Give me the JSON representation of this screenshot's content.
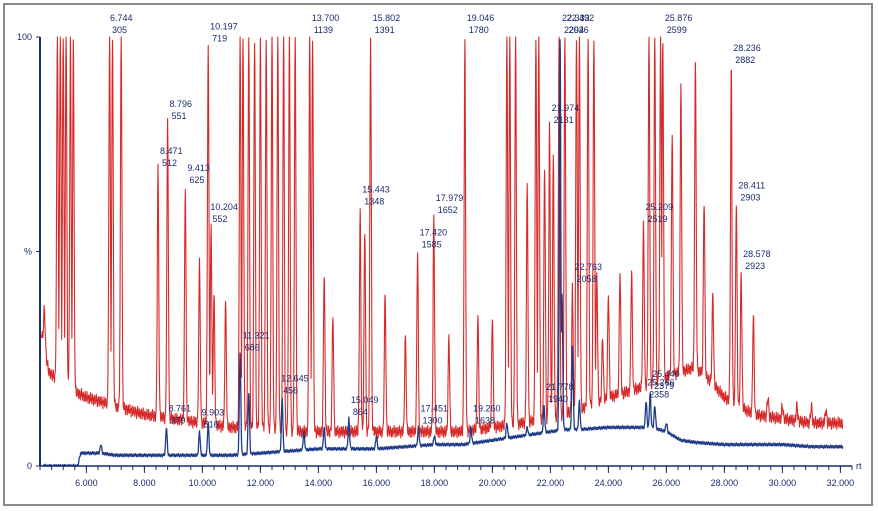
{
  "chart_data": {
    "type": "line",
    "title": "",
    "xlabel": "rt",
    "ylabel": "%",
    "xlim": [
      4.4,
      32.4
    ],
    "ylim": [
      0,
      100
    ],
    "grid": false,
    "x_ticks": [
      6,
      8,
      10,
      12,
      14,
      16,
      18,
      20,
      22,
      24,
      26,
      28,
      30,
      32
    ],
    "x_tick_labels": [
      "6.000",
      "8.000",
      "10.000",
      "12.000",
      "14.000",
      "16.000",
      "18.000",
      "20.000",
      "22.000",
      "24.000",
      "26.000",
      "28.000",
      "30.000",
      "32.000"
    ],
    "y_tick_labels": [
      {
        "value": 100,
        "label": "100"
      },
      {
        "value": 50,
        "label": "%"
      },
      {
        "value": 0,
        "label": "0"
      }
    ],
    "colors": {
      "red_trace": "#d62a2a",
      "blue_trace": "#1f3c88",
      "axis": "#1b2a6b",
      "frame": "#8a8a8a"
    },
    "series": [
      {
        "color": "#d62a2a",
        "baseline": [
          [
            4.5,
            30
          ],
          [
            4.7,
            22
          ],
          [
            5.0,
            20
          ],
          [
            5.4,
            18
          ],
          [
            6.0,
            16
          ],
          [
            7.0,
            14
          ],
          [
            8.0,
            12
          ],
          [
            9.0,
            11
          ],
          [
            10.0,
            10
          ],
          [
            11.0,
            9
          ],
          [
            12.0,
            9
          ],
          [
            13.0,
            8
          ],
          [
            14.0,
            8
          ],
          [
            15.0,
            8
          ],
          [
            16.0,
            8
          ],
          [
            17.0,
            8
          ],
          [
            18.0,
            8
          ],
          [
            19.0,
            8
          ],
          [
            20.0,
            9
          ],
          [
            21.0,
            10
          ],
          [
            22.0,
            11
          ],
          [
            23.0,
            13
          ],
          [
            24.0,
            16
          ],
          [
            25.0,
            18
          ],
          [
            25.8,
            20
          ],
          [
            26.5,
            22
          ],
          [
            27.0,
            23
          ],
          [
            27.5,
            20
          ],
          [
            28.0,
            16
          ],
          [
            28.5,
            14
          ],
          [
            29.0,
            12
          ],
          [
            30.0,
            11
          ],
          [
            31.0,
            10
          ],
          [
            32.0,
            10
          ]
        ],
        "peaks": [
          [
            4.55,
            37
          ],
          [
            5.0,
            100
          ],
          [
            5.1,
            100
          ],
          [
            5.2,
            100
          ],
          [
            5.3,
            100
          ],
          [
            5.45,
            100
          ],
          [
            5.55,
            100
          ],
          [
            6.8,
            100
          ],
          [
            6.9,
            100
          ],
          [
            7.2,
            100
          ],
          [
            8.47,
            69
          ],
          [
            8.8,
            80
          ],
          [
            9.41,
            65
          ],
          [
            9.9,
            47
          ],
          [
            10.2,
            98
          ],
          [
            10.3,
            56
          ],
          [
            10.4,
            40
          ],
          [
            10.8,
            38
          ],
          [
            11.3,
            100
          ],
          [
            11.4,
            100
          ],
          [
            11.6,
            100
          ],
          [
            11.8,
            100
          ],
          [
            12.0,
            100
          ],
          [
            12.2,
            100
          ],
          [
            12.4,
            100
          ],
          [
            12.6,
            100
          ],
          [
            12.8,
            100
          ],
          [
            13.0,
            100
          ],
          [
            13.2,
            100
          ],
          [
            13.7,
            100
          ],
          [
            13.8,
            100
          ],
          [
            14.2,
            45
          ],
          [
            14.5,
            35
          ],
          [
            15.44,
            60
          ],
          [
            15.6,
            55
          ],
          [
            15.8,
            100
          ],
          [
            16.3,
            40
          ],
          [
            17.0,
            30
          ],
          [
            17.42,
            50
          ],
          [
            17.98,
            58
          ],
          [
            18.5,
            30
          ],
          [
            19.05,
            100
          ],
          [
            19.5,
            35
          ],
          [
            20.0,
            35
          ],
          [
            20.5,
            100
          ],
          [
            20.6,
            100
          ],
          [
            20.8,
            100
          ],
          [
            21.2,
            65
          ],
          [
            21.5,
            100
          ],
          [
            21.6,
            100
          ],
          [
            21.8,
            70
          ],
          [
            21.97,
            79
          ],
          [
            22.1,
            72
          ],
          [
            22.3,
            100
          ],
          [
            22.5,
            100
          ],
          [
            22.76,
            42
          ],
          [
            22.9,
            100
          ],
          [
            23.0,
            100
          ],
          [
            23.3,
            100
          ],
          [
            23.5,
            100
          ],
          [
            23.6,
            45
          ],
          [
            23.8,
            30
          ],
          [
            24.0,
            40
          ],
          [
            24.4,
            45
          ],
          [
            24.8,
            45
          ],
          [
            25.21,
            56
          ],
          [
            25.4,
            100
          ],
          [
            25.6,
            100
          ],
          [
            25.8,
            100
          ],
          [
            25.876,
            100
          ],
          [
            26.2,
            78
          ],
          [
            26.5,
            88
          ],
          [
            27.0,
            94
          ],
          [
            27.3,
            62
          ],
          [
            27.6,
            40
          ],
          [
            28.236,
            93
          ],
          [
            28.411,
            61
          ],
          [
            28.578,
            45
          ],
          [
            29.0,
            35
          ],
          [
            29.5,
            16
          ],
          [
            30.0,
            14
          ],
          [
            30.5,
            14
          ],
          [
            31.0,
            14
          ],
          [
            31.5,
            13
          ]
        ]
      },
      {
        "color": "#1f3c88",
        "baseline": [
          [
            4.5,
            0
          ],
          [
            5.7,
            0
          ],
          [
            5.8,
            3
          ],
          [
            6.5,
            3
          ],
          [
            7.0,
            2.5
          ],
          [
            8.0,
            2.5
          ],
          [
            9.0,
            2.5
          ],
          [
            10.0,
            2.5
          ],
          [
            11.0,
            2.5
          ],
          [
            12.0,
            3
          ],
          [
            13.0,
            3.5
          ],
          [
            14.0,
            4
          ],
          [
            15.0,
            4
          ],
          [
            16.0,
            4
          ],
          [
            17.0,
            4.5
          ],
          [
            18.0,
            5
          ],
          [
            19.0,
            5
          ],
          [
            20.0,
            6
          ],
          [
            21.0,
            7
          ],
          [
            22.0,
            8
          ],
          [
            22.5,
            8.5
          ],
          [
            23.0,
            8.5
          ],
          [
            24.0,
            9
          ],
          [
            25.0,
            9
          ],
          [
            25.5,
            9
          ],
          [
            26.0,
            8
          ],
          [
            26.5,
            6
          ],
          [
            27.0,
            5.5
          ],
          [
            28.0,
            5
          ],
          [
            29.0,
            5
          ],
          [
            30.0,
            5
          ],
          [
            31.0,
            4.5
          ],
          [
            32.0,
            4.5
          ]
        ],
        "peaks": [
          [
            6.5,
            5
          ],
          [
            8.76,
            9
          ],
          [
            9.9,
            8
          ],
          [
            10.2,
            10
          ],
          [
            11.3,
            26
          ],
          [
            11.6,
            17
          ],
          [
            12.75,
            16
          ],
          [
            13.5,
            8
          ],
          [
            14.2,
            9
          ],
          [
            15.05,
            11
          ],
          [
            16.0,
            7
          ],
          [
            17.45,
            9
          ],
          [
            18.0,
            7
          ],
          [
            19.26,
            9
          ],
          [
            20.5,
            10
          ],
          [
            21.2,
            9
          ],
          [
            21.78,
            14
          ],
          [
            22.333,
            100
          ],
          [
            22.4,
            40
          ],
          [
            22.76,
            28
          ],
          [
            23.0,
            15
          ],
          [
            25.3,
            15
          ],
          [
            25.44,
            17
          ],
          [
            25.6,
            14
          ],
          [
            26.0,
            10
          ]
        ]
      }
    ],
    "annotations": [
      {
        "rt": "6.744",
        "area": "305",
        "x": 6.744,
        "y": 100
      },
      {
        "rt": "10.197",
        "area": "719",
        "x": 10.197,
        "y": 98
      },
      {
        "rt": "13.700",
        "area": "1139",
        "x": 13.7,
        "y": 100
      },
      {
        "rt": "15.802",
        "area": "1391",
        "x": 15.802,
        "y": 100
      },
      {
        "rt": "19.046",
        "area": "1780",
        "x": 19.046,
        "y": 100
      },
      {
        "rt": "22.492",
        "area": "2026",
        "x": 22.492,
        "y": 100
      },
      {
        "rt": "22.333",
        "area": "2294",
        "x": 22.333,
        "y": 100
      },
      {
        "rt": "25.876",
        "area": "2599",
        "x": 25.876,
        "y": 100
      },
      {
        "rt": "28.236",
        "area": "2882",
        "x": 28.236,
        "y": 93
      },
      {
        "rt": "8.796",
        "area": "551",
        "x": 8.796,
        "y": 80
      },
      {
        "rt": "8.471",
        "area": "512",
        "x": 8.471,
        "y": 69
      },
      {
        "rt": "9.413",
        "area": "625",
        "x": 9.413,
        "y": 65
      },
      {
        "rt": "10.204",
        "area": "552",
        "x": 10.204,
        "y": 56
      },
      {
        "rt": "15.443",
        "area": "1348",
        "x": 15.443,
        "y": 60
      },
      {
        "rt": "17.979",
        "area": "1652",
        "x": 17.979,
        "y": 58
      },
      {
        "rt": "17.420",
        "area": "1585",
        "x": 17.42,
        "y": 50
      },
      {
        "rt": "21.974",
        "area": "2131",
        "x": 21.974,
        "y": 79
      },
      {
        "rt": "25.209",
        "area": "2519",
        "x": 25.209,
        "y": 56
      },
      {
        "rt": "28.411",
        "area": "2903",
        "x": 28.411,
        "y": 61
      },
      {
        "rt": "28.578",
        "area": "2923",
        "x": 28.578,
        "y": 45
      },
      {
        "rt": "22.763",
        "area": "2058",
        "x": 22.763,
        "y": 42
      },
      {
        "rt": "11.321",
        "area": "686",
        "x": 11.321,
        "y": 26
      },
      {
        "rt": "19.260",
        "area": "1638",
        "x": 19.26,
        "y": 9
      },
      {
        "rt": "8.761",
        "area": "379",
        "x": 8.761,
        "y": 9
      },
      {
        "rt": "9.903",
        "area": "516",
        "x": 9.903,
        "y": 8
      },
      {
        "rt": "12.645",
        "area": "456",
        "x": 12.645,
        "y": 16
      },
      {
        "rt": "15.049",
        "area": "864",
        "x": 15.049,
        "y": 11
      },
      {
        "rt": "17.451",
        "area": "1300",
        "x": 17.451,
        "y": 9
      },
      {
        "rt": "21.778",
        "area": "1940",
        "x": 21.778,
        "y": 14
      },
      {
        "rt": "25.266",
        "area": "2358",
        "x": 25.266,
        "y": 15
      },
      {
        "rt": "25.440",
        "area": "2379",
        "x": 25.44,
        "y": 17
      }
    ]
  }
}
